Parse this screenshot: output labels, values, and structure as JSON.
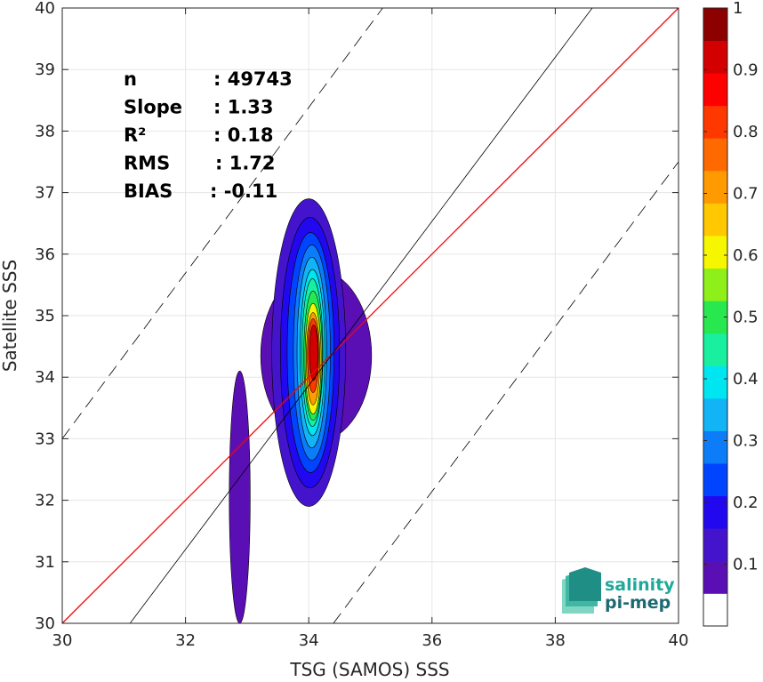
{
  "chart_data": {
    "type": "contour-density",
    "xlabel": "TSG (SAMOS) SSS",
    "ylabel": "Satellite SSS",
    "xlim": [
      30,
      40
    ],
    "ylim": [
      30,
      40
    ],
    "xticks": [
      "30",
      "32",
      "34",
      "36",
      "38",
      "40"
    ],
    "yticks": [
      "30",
      "31",
      "32",
      "33",
      "34",
      "35",
      "36",
      "37",
      "38",
      "39",
      "40"
    ],
    "grid": true,
    "stats": [
      {
        "label": "n",
        "value": ": 49743"
      },
      {
        "label": "Slope",
        "value": ": 1.33"
      },
      {
        "label": "R²",
        "value": ": 0.18"
      },
      {
        "label": "RMS",
        "value": ": 1.72"
      },
      {
        "label": "BIAS",
        "value": ": -0.11"
      }
    ],
    "lines": [
      {
        "kind": "1:1",
        "color": "#ff0000",
        "points": [
          [
            30,
            30
          ],
          [
            40,
            40
          ]
        ]
      },
      {
        "kind": "fit",
        "color": "#000000",
        "points": [
          [
            31.1,
            30
          ],
          [
            38.6,
            40
          ]
        ]
      },
      {
        "kind": "upper-bound",
        "color": "#000000",
        "dashed": true,
        "points": [
          [
            30,
            33
          ],
          [
            35.2,
            40
          ]
        ]
      },
      {
        "kind": "lower-bound",
        "color": "#000000",
        "dashed": true,
        "points": [
          [
            34.4,
            30
          ],
          [
            40,
            37.5
          ]
        ]
      }
    ],
    "colorbar": {
      "range": [
        0,
        1
      ],
      "ticks": [
        "0.1",
        "0.2",
        "0.3",
        "0.4",
        "0.5",
        "0.6",
        "0.7",
        "0.8",
        "0.9",
        "1"
      ],
      "colors": [
        "#ffffff",
        "#5a0fb4",
        "#4414cc",
        "#2208ee",
        "#0044ff",
        "#0c7cf8",
        "#12b4f6",
        "#00e6f0",
        "#18f0a0",
        "#28e850",
        "#8ef018",
        "#f6f600",
        "#ffc800",
        "#ff9a00",
        "#ff6a00",
        "#ff3800",
        "#ff0000",
        "#d20000",
        "#8c0000"
      ]
    },
    "blobs": [
      {
        "cx": 32.88,
        "cy": 32.05,
        "hw": 0.17,
        "hh": 2.05,
        "level": 1
      },
      {
        "cx": 34.12,
        "cy": 34.35,
        "hw": 0.9,
        "hh": 1.4,
        "level": 1
      },
      {
        "cx": 34.0,
        "cy": 34.4,
        "hw": 0.6,
        "hh": 2.5,
        "level": 2
      },
      {
        "cx": 34.02,
        "cy": 34.4,
        "hw": 0.48,
        "hh": 2.2,
        "level": 3
      },
      {
        "cx": 34.03,
        "cy": 34.4,
        "hw": 0.38,
        "hh": 1.95,
        "level": 4
      },
      {
        "cx": 34.05,
        "cy": 34.4,
        "hw": 0.3,
        "hh": 1.75,
        "level": 5
      },
      {
        "cx": 34.05,
        "cy": 34.4,
        "hw": 0.24,
        "hh": 1.55,
        "level": 6
      },
      {
        "cx": 34.06,
        "cy": 34.4,
        "hw": 0.2,
        "hh": 1.35,
        "level": 7
      },
      {
        "cx": 34.06,
        "cy": 34.4,
        "hw": 0.17,
        "hh": 1.2,
        "level": 8
      },
      {
        "cx": 34.07,
        "cy": 34.35,
        "hw": 0.15,
        "hh": 1.05,
        "level": 9
      },
      {
        "cx": 34.07,
        "cy": 34.3,
        "hw": 0.13,
        "hh": 0.9,
        "level": 11
      },
      {
        "cx": 34.07,
        "cy": 34.3,
        "hw": 0.11,
        "hh": 0.75,
        "level": 13
      },
      {
        "cx": 34.07,
        "cy": 34.35,
        "hw": 0.09,
        "hh": 0.6,
        "level": 15
      },
      {
        "cx": 34.08,
        "cy": 34.4,
        "hw": 0.07,
        "hh": 0.45,
        "level": 17
      }
    ]
  },
  "logo": {
    "line1": "salinity",
    "line2": "pi-mep"
  }
}
